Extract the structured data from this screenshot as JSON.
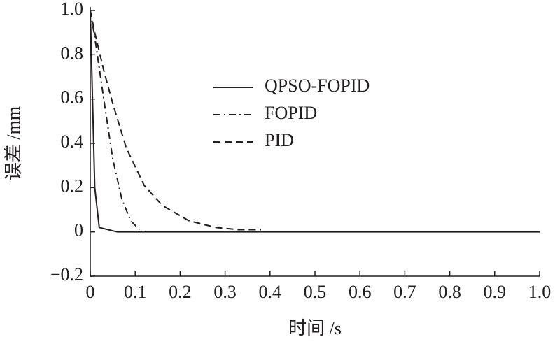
{
  "chart_data": {
    "type": "line",
    "xlabel": "时间 /s",
    "ylabel": "误差 /mm",
    "series": [
      {
        "name": "QPSO-FOPID",
        "color": "#231f20",
        "dash": "solid",
        "x": [
          0,
          0.005,
          0.01,
          0.02,
          0.06,
          1.0
        ],
        "values": [
          1.0,
          0.6,
          0.2,
          0.02,
          0,
          0
        ]
      },
      {
        "name": "FOPID",
        "color": "#231f20",
        "dash": "dashdot",
        "x": [
          0,
          0.01,
          0.02,
          0.03,
          0.05,
          0.07,
          0.09,
          0.11,
          0.12
        ],
        "values": [
          1.0,
          0.88,
          0.74,
          0.6,
          0.33,
          0.15,
          0.05,
          0.01,
          0
        ]
      },
      {
        "name": "PID",
        "color": "#231f20",
        "dash": "dashed",
        "x": [
          0,
          0.01,
          0.03,
          0.05,
          0.08,
          0.12,
          0.16,
          0.22,
          0.28,
          0.33,
          0.38
        ],
        "values": [
          1.0,
          0.9,
          0.73,
          0.58,
          0.38,
          0.21,
          0.12,
          0.05,
          0.02,
          0.01,
          0.01
        ]
      }
    ],
    "xlim": [
      0,
      1.0
    ],
    "ylim": [
      -0.2,
      1.0
    ],
    "xticks": [
      0,
      0.1,
      0.2,
      0.3,
      0.4,
      0.5,
      0.6,
      0.7,
      0.8,
      0.9,
      {
        "value": 1.0,
        "label": "1.0"
      }
    ],
    "yticks": [
      {
        "value": -0.2,
        "label": "−0.2"
      },
      0,
      0.2,
      0.4,
      0.6,
      0.8,
      {
        "value": 1.0,
        "label": "1.0"
      }
    ],
    "legend": "upper-center"
  }
}
